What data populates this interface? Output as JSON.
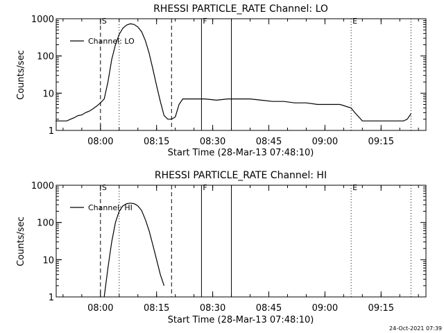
{
  "footer": {
    "timestamp": "24-Oct-2021 07:39"
  },
  "chart_data": [
    {
      "type": "line",
      "title": "RHESSI PARTICLE_RATE Channel: LO",
      "xlabel": "Start Time (28-Mar-13 07:48:10)",
      "ylabel": "Counts/sec",
      "yscale": "log",
      "ylim": [
        1,
        1000
      ],
      "xlim": [
        "07:48:10",
        "09:27:00"
      ],
      "xticks": [
        "08:00",
        "08:15",
        "08:30",
        "08:45",
        "09:00",
        "09:15"
      ],
      "yticks": [
        "1",
        "10",
        "100",
        "1000"
      ],
      "legend": {
        "label": "Channel: LO",
        "placement": "top-left"
      },
      "markers": [
        {
          "label": "S",
          "time": "08:00",
          "style": "dashed"
        },
        {
          "label": "",
          "time": "08:05",
          "style": "dotted"
        },
        {
          "label": "",
          "time": "08:19",
          "style": "dashed"
        },
        {
          "label": "F",
          "time": "08:27",
          "style": "solid"
        },
        {
          "label": "",
          "time": "08:35",
          "style": "solid"
        },
        {
          "label": "E",
          "time": "09:07",
          "style": "dotted"
        },
        {
          "label": "",
          "time": "09:23",
          "style": "dotted"
        }
      ],
      "series": [
        {
          "name": "Channel: LO",
          "x": [
            "07:48",
            "07:50",
            "07:51",
            "07:52",
            "07:53",
            "07:54",
            "07:55",
            "07:56",
            "07:57",
            "07:58",
            "07:59",
            "08:00",
            "08:01",
            "08:02",
            "08:03",
            "08:04",
            "08:05",
            "08:06",
            "08:07",
            "08:08",
            "08:09",
            "08:10",
            "08:11",
            "08:12",
            "08:13",
            "08:14",
            "08:15",
            "08:16",
            "08:17",
            "08:18",
            "08:19",
            "08:20",
            "08:21",
            "08:22",
            "08:25",
            "08:28",
            "08:31",
            "08:34",
            "08:37",
            "08:40",
            "08:43",
            "08:46",
            "08:49",
            "08:52",
            "08:55",
            "08:58",
            "09:01",
            "09:04",
            "09:07",
            "09:08",
            "09:10",
            "09:13",
            "09:16",
            "09:19",
            "09:21",
            "09:22",
            "09:23"
          ],
          "y": [
            1.8,
            1.8,
            1.8,
            2,
            2.2,
            2.5,
            2.6,
            3,
            3.3,
            3.8,
            4.5,
            5.5,
            7,
            20,
            80,
            200,
            380,
            560,
            680,
            730,
            700,
            600,
            450,
            260,
            120,
            45,
            16,
            6,
            2.5,
            2,
            2,
            2.3,
            5,
            7,
            7,
            7,
            6.5,
            7,
            7,
            7,
            6.5,
            6,
            6,
            5.5,
            5.5,
            5,
            5,
            5,
            4,
            3,
            1.8,
            1.8,
            1.8,
            1.8,
            1.8,
            2,
            2.8
          ]
        }
      ]
    },
    {
      "type": "line",
      "title": "RHESSI PARTICLE_RATE Channel: HI",
      "xlabel": "Start Time (28-Mar-13 07:48:10)",
      "ylabel": "Counts/sec",
      "yscale": "log",
      "ylim": [
        1,
        1000
      ],
      "xlim": [
        "07:48:10",
        "09:27:00"
      ],
      "xticks": [
        "08:00",
        "08:15",
        "08:30",
        "08:45",
        "09:00",
        "09:15"
      ],
      "yticks": [
        "1",
        "10",
        "100",
        "1000"
      ],
      "legend": {
        "label": "Channel: HI",
        "placement": "top-left"
      },
      "markers": [
        {
          "label": "S",
          "time": "08:00",
          "style": "dashed"
        },
        {
          "label": "",
          "time": "08:05",
          "style": "dotted"
        },
        {
          "label": "",
          "time": "08:19",
          "style": "dashed"
        },
        {
          "label": "F",
          "time": "08:27",
          "style": "solid"
        },
        {
          "label": "",
          "time": "08:35",
          "style": "solid"
        },
        {
          "label": "E",
          "time": "09:07",
          "style": "dotted"
        },
        {
          "label": "",
          "time": "09:23",
          "style": "dotted"
        }
      ],
      "series": [
        {
          "name": "Channel: HI",
          "x": [
            "08:01",
            "08:02",
            "08:03",
            "08:04",
            "08:05",
            "08:06",
            "08:07",
            "08:08",
            "08:09",
            "08:10",
            "08:11",
            "08:12",
            "08:13",
            "08:14",
            "08:15",
            "08:16",
            "08:17"
          ],
          "y": [
            1,
            6,
            30,
            100,
            200,
            280,
            320,
            330,
            320,
            280,
            210,
            120,
            60,
            25,
            10,
            4,
            2
          ]
        }
      ]
    }
  ]
}
